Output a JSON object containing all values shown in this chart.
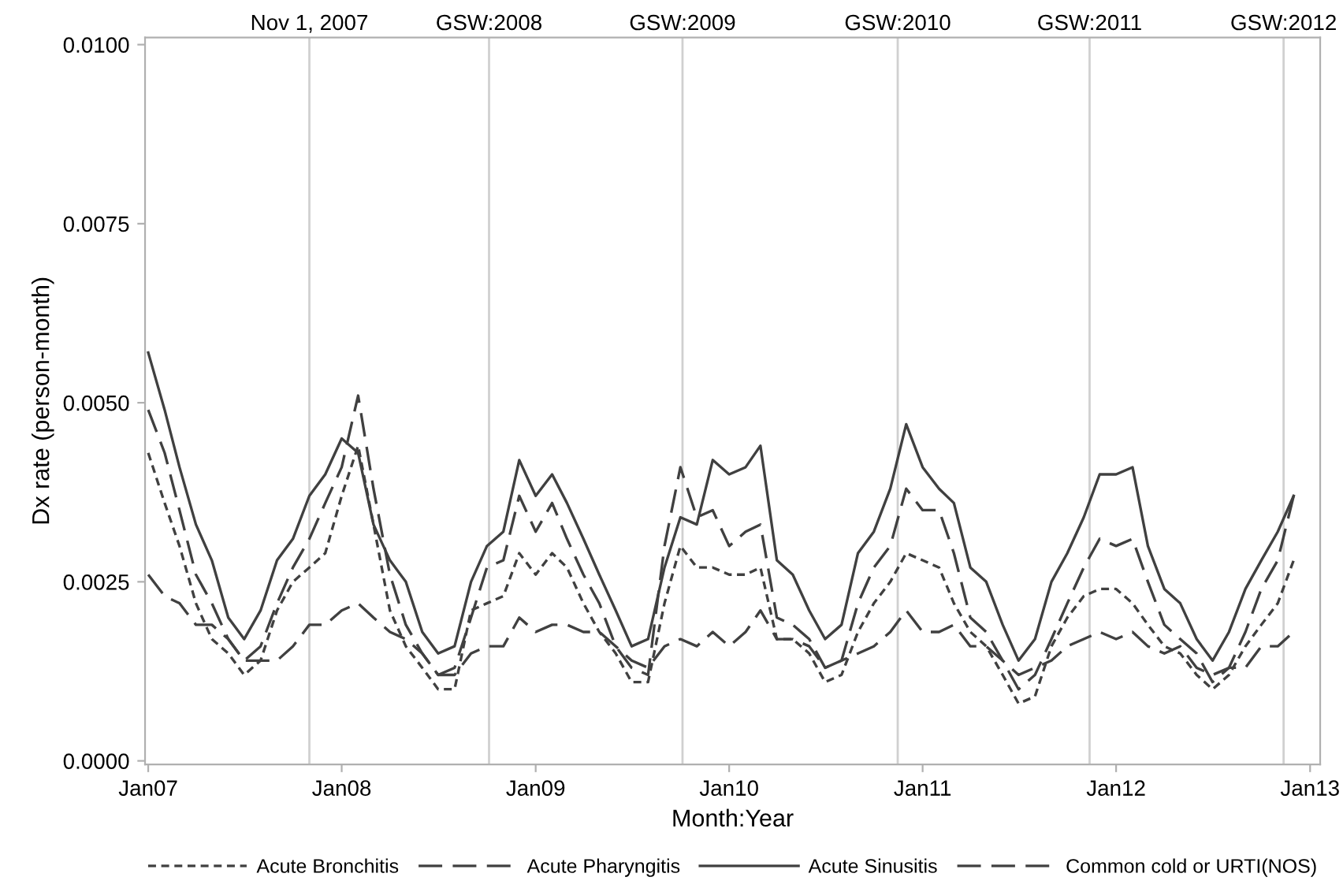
{
  "chart_data": {
    "type": "line",
    "xlabel": "Month:Year",
    "ylabel": "Dx rate (person-month)",
    "x": [
      "2007-01",
      "2007-02",
      "2007-03",
      "2007-04",
      "2007-05",
      "2007-06",
      "2007-07",
      "2007-08",
      "2007-09",
      "2007-10",
      "2007-11",
      "2007-12",
      "2008-01",
      "2008-02",
      "2008-03",
      "2008-04",
      "2008-05",
      "2008-06",
      "2008-07",
      "2008-08",
      "2008-09",
      "2008-10",
      "2008-11",
      "2008-12",
      "2009-01",
      "2009-02",
      "2009-03",
      "2009-04",
      "2009-05",
      "2009-06",
      "2009-07",
      "2009-08",
      "2009-09",
      "2009-10",
      "2009-11",
      "2009-12",
      "2010-01",
      "2010-02",
      "2010-03",
      "2010-04",
      "2010-05",
      "2010-06",
      "2010-07",
      "2010-08",
      "2010-09",
      "2010-10",
      "2010-11",
      "2010-12",
      "2011-01",
      "2011-02",
      "2011-03",
      "2011-04",
      "2011-05",
      "2011-06",
      "2011-07",
      "2011-08",
      "2011-09",
      "2011-10",
      "2011-11",
      "2011-12",
      "2012-01",
      "2012-02",
      "2012-03",
      "2012-04",
      "2012-05",
      "2012-06",
      "2012-07",
      "2012-08",
      "2012-09",
      "2012-10",
      "2012-11",
      "2012-12"
    ],
    "series": [
      {
        "name": "Acute Bronchitis",
        "color": "#404040",
        "line_style": "dotted",
        "values": [
          0.0043,
          0.0036,
          0.003,
          0.0022,
          0.0017,
          0.0015,
          0.0012,
          0.0014,
          0.0021,
          0.0025,
          0.0027,
          0.0029,
          0.0037,
          0.0044,
          0.0033,
          0.0021,
          0.0016,
          0.0013,
          0.001,
          0.001,
          0.0021,
          0.0022,
          0.0023,
          0.0029,
          0.0026,
          0.0029,
          0.0027,
          0.0022,
          0.0018,
          0.0015,
          0.0011,
          0.0011,
          0.0022,
          0.003,
          0.0027,
          0.0027,
          0.0026,
          0.0026,
          0.0027,
          0.0017,
          0.0017,
          0.0015,
          0.0011,
          0.0012,
          0.0018,
          0.0022,
          0.0025,
          0.0029,
          0.0028,
          0.0027,
          0.0022,
          0.0018,
          0.0016,
          0.0012,
          0.0008,
          0.0009,
          0.0016,
          0.002,
          0.0023,
          0.0024,
          0.0024,
          0.0022,
          0.0019,
          0.0016,
          0.0015,
          0.0012,
          0.001,
          0.0012,
          0.0016,
          0.0019,
          0.0022,
          0.0028
        ]
      },
      {
        "name": "Acute Pharyngitis",
        "color": "#404040",
        "line_style": "dashed",
        "values": [
          0.0049,
          0.0043,
          0.0035,
          0.0026,
          0.0022,
          0.0017,
          0.0014,
          0.0016,
          0.0022,
          0.0027,
          0.0031,
          0.0036,
          0.0041,
          0.0051,
          0.0038,
          0.0026,
          0.0019,
          0.0015,
          0.0012,
          0.0013,
          0.002,
          0.0027,
          0.0028,
          0.0037,
          0.0032,
          0.0036,
          0.0031,
          0.0026,
          0.0022,
          0.0016,
          0.0013,
          0.0012,
          0.003,
          0.0041,
          0.0034,
          0.0035,
          0.003,
          0.0032,
          0.0033,
          0.002,
          0.0019,
          0.0017,
          0.0013,
          0.0014,
          0.0022,
          0.0027,
          0.003,
          0.0038,
          0.0035,
          0.0035,
          0.0029,
          0.002,
          0.0018,
          0.0014,
          0.001,
          0.0012,
          0.0017,
          0.0022,
          0.0027,
          0.0031,
          0.003,
          0.0031,
          0.0025,
          0.0019,
          0.0017,
          0.0015,
          0.0011,
          0.0013,
          0.0018,
          0.0024,
          0.0028,
          0.0037
        ]
      },
      {
        "name": "Acute Sinusitis",
        "color": "#404040",
        "line_style": "solid",
        "values": [
          0.0057,
          0.0049,
          0.0041,
          0.0033,
          0.0028,
          0.002,
          0.0017,
          0.0021,
          0.0028,
          0.0031,
          0.0037,
          0.004,
          0.0045,
          0.0043,
          0.0033,
          0.0028,
          0.0025,
          0.0018,
          0.0015,
          0.0016,
          0.0025,
          0.003,
          0.0032,
          0.0042,
          0.0037,
          0.004,
          0.0036,
          0.0031,
          0.0026,
          0.0021,
          0.0016,
          0.0017,
          0.0027,
          0.0034,
          0.0033,
          0.0042,
          0.004,
          0.0041,
          0.0044,
          0.0028,
          0.0026,
          0.0021,
          0.0017,
          0.0019,
          0.0029,
          0.0032,
          0.0038,
          0.0047,
          0.0041,
          0.0038,
          0.0036,
          0.0027,
          0.0025,
          0.0019,
          0.0014,
          0.0017,
          0.0025,
          0.0029,
          0.0034,
          0.004,
          0.004,
          0.0041,
          0.003,
          0.0024,
          0.0022,
          0.0017,
          0.0014,
          0.0018,
          0.0024,
          0.0028,
          0.0032,
          0.0037
        ]
      },
      {
        "name": "Common cold or URTI(NOS)",
        "color": "#404040",
        "line_style": "dashed",
        "values": [
          0.0026,
          0.0023,
          0.0022,
          0.0019,
          0.0019,
          0.0017,
          0.0014,
          0.0014,
          0.0014,
          0.0016,
          0.0019,
          0.0019,
          0.0021,
          0.0022,
          0.002,
          0.0018,
          0.0017,
          0.0015,
          0.0012,
          0.0012,
          0.0015,
          0.0016,
          0.0016,
          0.002,
          0.0018,
          0.0019,
          0.0019,
          0.0018,
          0.0018,
          0.0016,
          0.0014,
          0.0013,
          0.0016,
          0.0017,
          0.0016,
          0.0018,
          0.0016,
          0.0018,
          0.0021,
          0.0017,
          0.0017,
          0.0016,
          0.0013,
          0.0014,
          0.0015,
          0.0016,
          0.0018,
          0.0021,
          0.0018,
          0.0018,
          0.0019,
          0.0016,
          0.0016,
          0.0014,
          0.0012,
          0.0013,
          0.0014,
          0.0016,
          0.0017,
          0.0018,
          0.0017,
          0.0018,
          0.0016,
          0.0015,
          0.0016,
          0.0013,
          0.0012,
          0.0013,
          0.0013,
          0.0016,
          0.0016,
          0.0018
        ]
      }
    ],
    "xlim": [
      "2006-12-26",
      "2013-01-20"
    ],
    "xticks": [
      {
        "value": "2007-01-01",
        "label": "Jan07"
      },
      {
        "value": "2008-01-01",
        "label": "Jan08"
      },
      {
        "value": "2009-01-01",
        "label": "Jan09"
      },
      {
        "value": "2010-01-01",
        "label": "Jan10"
      },
      {
        "value": "2011-01-01",
        "label": "Jan11"
      },
      {
        "value": "2012-01-01",
        "label": "Jan12"
      },
      {
        "value": "2013-01-01",
        "label": "Jan13"
      }
    ],
    "ylim": [
      -5e-05,
      0.0101
    ],
    "yticks": [
      {
        "value": 0,
        "label": "0.0000"
      },
      {
        "value": 0.0025,
        "label": "0.0025"
      },
      {
        "value": 0.005,
        "label": "0.0050"
      },
      {
        "value": 0.0075,
        "label": "0.0075"
      },
      {
        "value": 0.01,
        "label": "0.0100"
      }
    ],
    "ref_lines": [
      {
        "axis": "x",
        "value": "2007-11-01",
        "label": "Nov 1, 2007",
        "color": "#d0d0d0"
      },
      {
        "axis": "x",
        "value": "2008-10-05",
        "label": "GSW:2008",
        "color": "#d0d0d0"
      },
      {
        "axis": "x",
        "value": "2009-10-05",
        "label": "GSW:2009",
        "color": "#d0d0d0"
      },
      {
        "axis": "x",
        "value": "2010-11-15",
        "label": "GSW:2010",
        "color": "#d0d0d0"
      },
      {
        "axis": "x",
        "value": "2011-11-12",
        "label": "GSW:2011",
        "color": "#d0d0d0"
      },
      {
        "axis": "x",
        "value": "2012-11-12",
        "label": "GSW:2012",
        "color": "#d0d0d0"
      }
    ],
    "grid": false,
    "legend": "bottom",
    "marker": "none"
  }
}
